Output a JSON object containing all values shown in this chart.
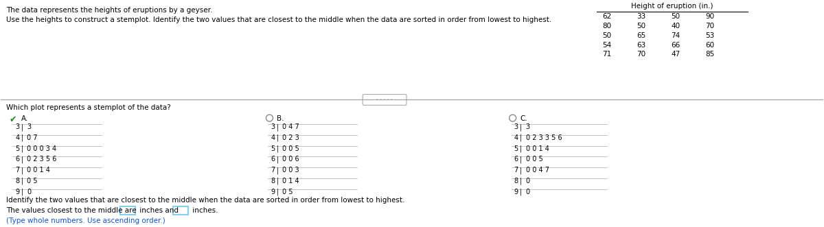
{
  "title_line1": "The data represents the heights of eruptions by a geyser.",
  "title_line2": "Use the heights to construct a stemplot. Identify the two values that are closest to the middle when the data are sorted in order from lowest to highest.",
  "question": "Which plot represents a stemplot of the data?",
  "identify_text": "Identify the two values that are closest to the middle when the data are sorted in order from lowest to highest.",
  "answer_text": "The values closest to the middle are",
  "answer_note": "(Type whole numbers. Use ascending order.)",
  "table_header": "Height of eruption (in.)",
  "table_data": [
    [
      62,
      33,
      50,
      90
    ],
    [
      80,
      50,
      40,
      70
    ],
    [
      50,
      65,
      74,
      53
    ],
    [
      54,
      63,
      66,
      60
    ],
    [
      71,
      70,
      47,
      85
    ]
  ],
  "plot_A_label": "A.",
  "plot_B_label": "B.",
  "plot_C_label": "C.",
  "plot_A_rows": [
    [
      "3",
      "3"
    ],
    [
      "4",
      "0 7"
    ],
    [
      "5",
      "0 0 0 3 4"
    ],
    [
      "6",
      "0 2 3 5 6"
    ],
    [
      "7",
      "0 0 1 4"
    ],
    [
      "8",
      "0 5"
    ],
    [
      "9",
      "0"
    ]
  ],
  "plot_B_rows": [
    [
      "3",
      "0 4 7"
    ],
    [
      "4",
      "0 2 3"
    ],
    [
      "5",
      "0 0 5"
    ],
    [
      "6",
      "0 0 6"
    ],
    [
      "7",
      "0 0 3"
    ],
    [
      "8",
      "0 1 4"
    ],
    [
      "9",
      "0 5"
    ]
  ],
  "plot_C_rows": [
    [
      "3",
      "3"
    ],
    [
      "4",
      "0 2 3 3 5 6"
    ],
    [
      "5",
      "0 0 1 4"
    ],
    [
      "6",
      "0 0 5"
    ],
    [
      "7",
      "0 0 4 7"
    ],
    [
      "8",
      "0"
    ],
    [
      "9",
      "0"
    ]
  ],
  "bg_color": "#ffffff",
  "text_color": "#000000",
  "blue_color": "#1155cc",
  "green_check_color": "#228B22",
  "input_box_color": "#87ceeb",
  "line_color": "#aaaaaa",
  "font_size_body": 7.5,
  "font_size_stem": 7.0
}
